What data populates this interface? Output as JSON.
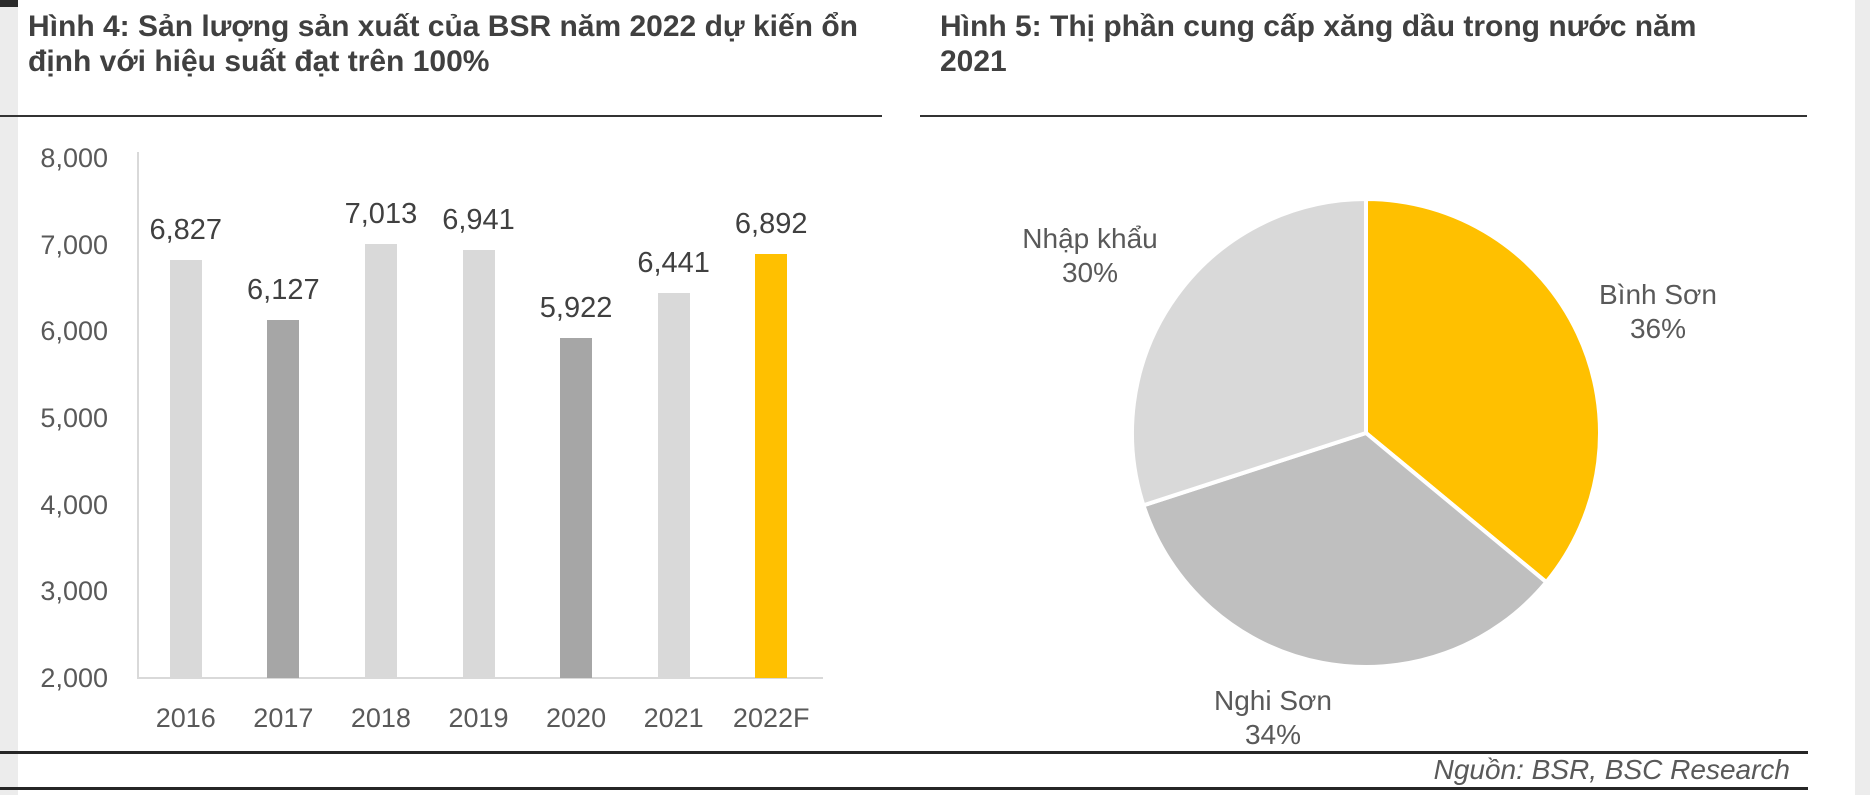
{
  "page": {
    "source_label": "Nguồn: BSR, BSC Research"
  },
  "figure4": {
    "title_lines": [
      "Hình 4: Sản lượng sản xuất của BSR năm 2022 dự kiến ổn",
      "định với hiệu suất đạt trên 100%"
    ]
  },
  "figure5": {
    "title_lines": [
      "Hình 5: Thị phần cung cấp xăng dầu trong nước năm",
      "2021"
    ]
  },
  "colors": {
    "bar_light": "#d9d9d9",
    "bar_dark": "#a6a6a6",
    "accent_yellow": "#ffc000",
    "pie_mid_gray": "#bfbfbf",
    "axis_text": "#595959",
    "label_text": "#404040"
  },
  "chart_data": [
    {
      "type": "bar",
      "title": "Hình 4: Sản lượng sản xuất của BSR năm 2022 dự kiến ổn định với hiệu suất đạt trên 100%",
      "categories": [
        "2016",
        "2017",
        "2018",
        "2019",
        "2020",
        "2021",
        "2022F"
      ],
      "values": [
        6827,
        6127,
        7013,
        6941,
        5922,
        6441,
        6892
      ],
      "value_labels": [
        "6,827",
        "6,127",
        "7,013",
        "6,941",
        "5,922",
        "6,441",
        "6,892"
      ],
      "bar_colors": [
        "#d9d9d9",
        "#a6a6a6",
        "#d9d9d9",
        "#d9d9d9",
        "#a6a6a6",
        "#d9d9d9",
        "#ffc000"
      ],
      "xlabel": "",
      "ylabel": "",
      "ylim": [
        2000,
        8000
      ],
      "yticks": [
        {
          "value": 8000,
          "label": "8,000"
        },
        {
          "value": 7000,
          "label": "7,000"
        },
        {
          "value": 6000,
          "label": "6,000"
        },
        {
          "value": 5000,
          "label": "5,000"
        },
        {
          "value": 4000,
          "label": "4,000"
        },
        {
          "value": 3000,
          "label": "3,000"
        },
        {
          "value": 2000,
          "label": "2,000"
        }
      ],
      "grid": false,
      "legend": "none"
    },
    {
      "type": "pie",
      "title": "Hình 5: Thị phần cung cấp xăng dầu trong nước năm 2021",
      "start_angle_deg": 0,
      "direction": "clockwise",
      "slices": [
        {
          "label": "Bình Sơn",
          "pct": 36,
          "pct_label": "36%",
          "color": "#ffc000"
        },
        {
          "label": "Nghi Sơn",
          "pct": 34,
          "pct_label": "34%",
          "color": "#bfbfbf"
        },
        {
          "label": "Nhập khẩu",
          "pct": 30,
          "pct_label": "30%",
          "color": "#d9d9d9"
        }
      ],
      "legend": "none"
    }
  ]
}
